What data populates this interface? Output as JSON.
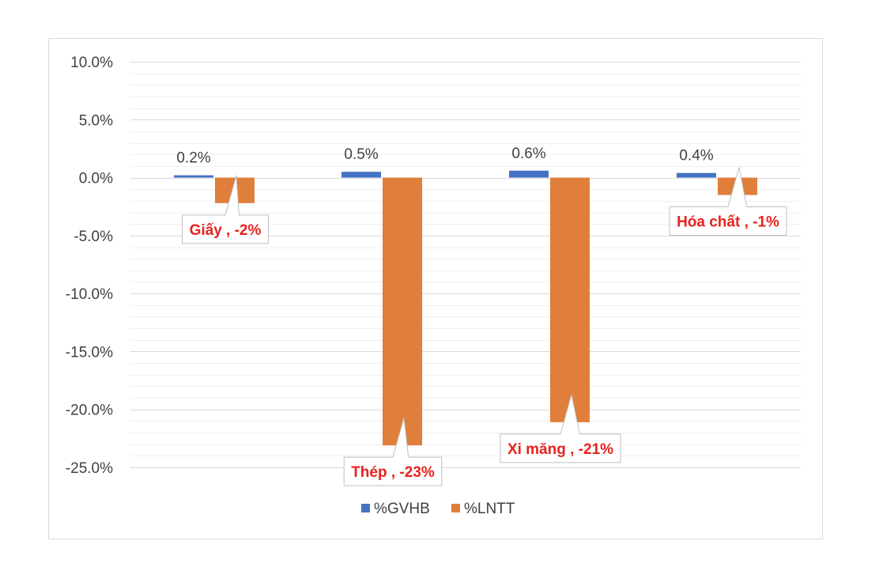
{
  "chart_data": {
    "type": "bar",
    "categories": [
      "Giấy",
      "Thép",
      "Xi măng",
      "Hóa chất"
    ],
    "series": [
      {
        "name": "%GVHB",
        "values": [
          0.2,
          0.5,
          0.6,
          0.4
        ],
        "color": "#4472c4"
      },
      {
        "name": "%LNTT",
        "values": [
          -2.2,
          -23.1,
          -21.1,
          -1.5
        ],
        "color": "#e07e3c"
      }
    ],
    "gvhb_labels": [
      "0.2%",
      "0.5%",
      "0.6%",
      "0.4%"
    ],
    "callouts": [
      "Giấy , -2%",
      "Thép , -23%",
      "Xi măng , -21%",
      "Hóa chất , -1%"
    ],
    "yticks": [
      "10.0%",
      "5.0%",
      "0.0%",
      "-5.0%",
      "-10.0%",
      "-15.0%",
      "-20.0%",
      "-25.0%"
    ],
    "ylim": [
      -25,
      10
    ],
    "major_step": 5,
    "minor_step": 1,
    "grid": true,
    "legend_position": "bottom",
    "colors": {
      "grid": "#d9d9d9",
      "callout_text": "#e8221d",
      "callout_border": "#bfbfbf"
    }
  }
}
